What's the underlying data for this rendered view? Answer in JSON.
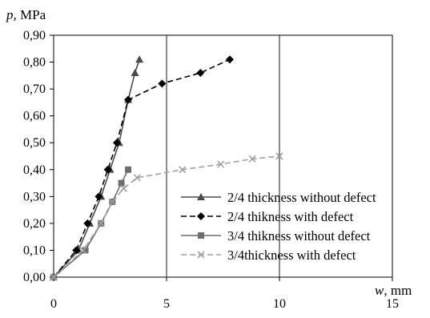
{
  "chart_data": {
    "type": "line",
    "title": "",
    "ylabel_var": "p,",
    "ylabel_unit": "MPa",
    "xlabel_var": "w",
    "xlabel_unit": ", mm",
    "xlim": [
      0,
      15
    ],
    "ylim": [
      0,
      0.9
    ],
    "x_ticks": [
      0,
      5,
      10,
      15
    ],
    "x_tick_labels": [
      "0",
      "5",
      "10",
      "15"
    ],
    "y_ticks": [
      0,
      0.1,
      0.2,
      0.3,
      0.4,
      0.5,
      0.6,
      0.7,
      0.8,
      0.9
    ],
    "y_tick_labels": [
      "0,00",
      "0,10",
      "0,20",
      "0,30",
      "0,40",
      "0,50",
      "0,60",
      "0,70",
      "0,80",
      "0,90"
    ],
    "grid": {
      "vertical": true,
      "horizontal": false
    },
    "legend_position": "right",
    "series": [
      {
        "name": "2/4 thickness without defect",
        "color": "#4a4a4a",
        "line_style": "solid",
        "marker": "triangle",
        "x": [
          0,
          1.1,
          1.6,
          2.1,
          2.5,
          2.9,
          3.3,
          3.6,
          3.8
        ],
        "y": [
          0,
          0.1,
          0.2,
          0.3,
          0.4,
          0.5,
          0.66,
          0.76,
          0.81
        ]
      },
      {
        "name": "2/4 thikness with defect",
        "color": "#000000",
        "line_style": "dashed",
        "marker": "diamond",
        "x": [
          0,
          1.0,
          1.5,
          2.0,
          2.4,
          2.8,
          3.3,
          4.8,
          6.5,
          7.8
        ],
        "y": [
          0,
          0.1,
          0.2,
          0.3,
          0.4,
          0.5,
          0.66,
          0.72,
          0.76,
          0.81
        ]
      },
      {
        "name": "3/4 thikness without defect",
        "color": "#6e6e6e",
        "line_style": "solid",
        "marker": "square",
        "x": [
          0,
          1.4,
          2.1,
          2.6,
          3.0,
          3.3
        ],
        "y": [
          0,
          0.1,
          0.2,
          0.28,
          0.35,
          0.4
        ]
      },
      {
        "name": "3/4thickness with defect",
        "color": "#a0a0a0",
        "line_style": "dashed",
        "marker": "x",
        "x": [
          0,
          1.3,
          2.1,
          2.6,
          3.1,
          3.7,
          5.7,
          7.4,
          8.8,
          10.0
        ],
        "y": [
          0,
          0.1,
          0.2,
          0.28,
          0.33,
          0.37,
          0.4,
          0.42,
          0.44,
          0.45
        ]
      }
    ]
  }
}
